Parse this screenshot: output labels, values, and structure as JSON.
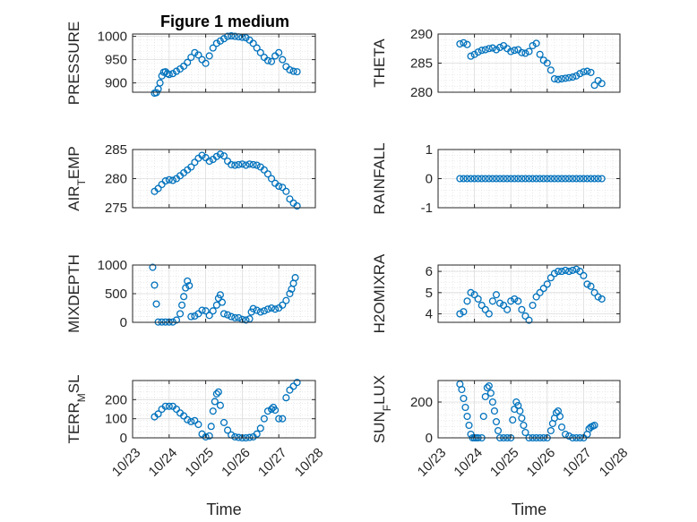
{
  "chart_data": [
    {
      "type": "scatter",
      "title": "Figure 1 medium",
      "ylabel": "PRESSURE",
      "ylim": [
        880,
        1005
      ],
      "yticks": [
        "900",
        "950",
        "1000"
      ],
      "xlim": [
        "10/23",
        "10/28"
      ],
      "grid": true,
      "marker_color": "#0072BD",
      "series": [
        {
          "x": [
            23.6,
            23.65,
            23.7,
            23.75,
            23.8,
            23.85,
            23.9,
            23.95,
            24.0,
            24.1,
            24.2,
            24.3,
            24.4,
            24.5,
            24.6,
            24.7,
            24.8,
            24.9,
            25.0,
            25.1,
            25.2,
            25.3,
            25.4,
            25.5,
            25.6,
            25.7,
            25.8,
            25.9,
            26.0,
            26.1,
            26.2,
            26.3,
            26.4,
            26.5,
            26.6,
            26.7,
            26.8,
            26.9,
            27.0,
            27.1,
            27.2,
            27.3,
            27.4,
            27.5
          ],
          "y": [
            878,
            879,
            887,
            900,
            915,
            923,
            924,
            920,
            918,
            920,
            925,
            930,
            936,
            944,
            955,
            965,
            960,
            950,
            942,
            958,
            975,
            985,
            990,
            995,
            1000,
            1001,
            1000,
            999,
            998,
            997,
            992,
            985,
            975,
            965,
            955,
            948,
            946,
            958,
            965,
            950,
            935,
            928,
            925,
            924
          ]
        }
      ]
    },
    {
      "type": "scatter",
      "ylabel": "THETA",
      "ylim": [
        280,
        290
      ],
      "yticks": [
        "280",
        "285",
        "290"
      ],
      "xlim": [
        "10/23",
        "10/28"
      ],
      "grid": true,
      "marker_color": "#0072BD",
      "series": [
        {
          "x": [
            23.6,
            23.7,
            23.8,
            23.9,
            24.0,
            24.1,
            24.2,
            24.3,
            24.4,
            24.5,
            24.6,
            24.7,
            24.8,
            24.9,
            25.0,
            25.1,
            25.2,
            25.3,
            25.4,
            25.5,
            25.6,
            25.7,
            25.8,
            25.9,
            26.0,
            26.1,
            26.2,
            26.3,
            26.4,
            26.5,
            26.6,
            26.7,
            26.8,
            26.9,
            27.0,
            27.1,
            27.2,
            27.3,
            27.4,
            27.5
          ],
          "y": [
            288.3,
            288.5,
            288.2,
            286.2,
            286.5,
            286.9,
            287.2,
            287.3,
            287.5,
            287.6,
            287.3,
            287.7,
            288.0,
            287.5,
            287.0,
            287.2,
            287.3,
            286.8,
            286.7,
            287.0,
            288.0,
            288.4,
            286.5,
            285.5,
            285.0,
            283.8,
            282.3,
            282.2,
            282.3,
            282.4,
            282.5,
            282.6,
            282.8,
            283.2,
            283.5,
            283.6,
            283.4,
            281.2,
            282.0,
            281.5
          ]
        }
      ]
    },
    {
      "type": "scatter",
      "ylabel_main": "AIR",
      "ylabel_sub": "T",
      "ylabel_rest": "EMP",
      "ylim": [
        275,
        285
      ],
      "yticks": [
        "275",
        "280",
        "285"
      ],
      "xlim": [
        "10/23",
        "10/28"
      ],
      "grid": true,
      "marker_color": "#0072BD",
      "series": [
        {
          "x": [
            23.6,
            23.7,
            23.8,
            23.9,
            24.0,
            24.1,
            24.2,
            24.3,
            24.4,
            24.5,
            24.6,
            24.7,
            24.8,
            24.9,
            25.0,
            25.1,
            25.2,
            25.3,
            25.4,
            25.5,
            25.6,
            25.7,
            25.8,
            25.9,
            26.0,
            26.1,
            26.2,
            26.3,
            26.4,
            26.5,
            26.6,
            26.7,
            26.8,
            26.9,
            27.0,
            27.1,
            27.2,
            27.3,
            27.4,
            27.5
          ],
          "y": [
            277.8,
            278.3,
            279.0,
            279.6,
            279.8,
            279.7,
            280.0,
            280.5,
            281.0,
            281.5,
            282.0,
            282.8,
            283.5,
            284.0,
            283.6,
            283.0,
            283.3,
            283.8,
            284.2,
            283.9,
            283.0,
            282.4,
            282.3,
            282.4,
            282.5,
            282.3,
            282.5,
            282.4,
            282.3,
            282.0,
            281.5,
            280.8,
            280.0,
            279.2,
            278.7,
            278.5,
            277.8,
            276.5,
            275.8,
            275.3
          ]
        }
      ]
    },
    {
      "type": "scatter",
      "ylabel": "RAINFALL",
      "ylim": [
        -1,
        1
      ],
      "yticks": [
        "-1",
        "0",
        "1"
      ],
      "xlim": [
        "10/23",
        "10/28"
      ],
      "grid": true,
      "marker_color": "#0072BD",
      "series": [
        {
          "x": [
            23.6,
            23.7,
            23.8,
            23.9,
            24.0,
            24.1,
            24.2,
            24.3,
            24.4,
            24.5,
            24.6,
            24.7,
            24.8,
            24.9,
            25.0,
            25.1,
            25.2,
            25.3,
            25.4,
            25.5,
            25.6,
            25.7,
            25.8,
            25.9,
            26.0,
            26.1,
            26.2,
            26.3,
            26.4,
            26.5,
            26.6,
            26.7,
            26.8,
            26.9,
            27.0,
            27.1,
            27.2,
            27.3,
            27.4,
            27.5
          ],
          "y": [
            0,
            0,
            0,
            0,
            0,
            0,
            0,
            0,
            0,
            0,
            0,
            0,
            0,
            0,
            0,
            0,
            0,
            0,
            0,
            0,
            0,
            0,
            0,
            0,
            0,
            0,
            0,
            0,
            0,
            0,
            0,
            0,
            0,
            0,
            0,
            0,
            0,
            0,
            0,
            0
          ]
        }
      ]
    },
    {
      "type": "scatter",
      "ylabel": "MIXDEPTH",
      "ylim": [
        0,
        1000
      ],
      "yticks": [
        "0",
        "500",
        "1000"
      ],
      "xlim": [
        "10/23",
        "10/28"
      ],
      "grid": true,
      "marker_color": "#0072BD",
      "series": [
        {
          "x": [
            23.55,
            23.6,
            23.65,
            23.7,
            23.8,
            23.9,
            24.0,
            24.1,
            24.2,
            24.3,
            24.35,
            24.4,
            24.45,
            24.5,
            24.55,
            24.6,
            24.7,
            24.8,
            24.9,
            25.0,
            25.1,
            25.2,
            25.3,
            25.35,
            25.4,
            25.45,
            25.5,
            25.6,
            25.7,
            25.8,
            25.9,
            26.0,
            26.1,
            26.2,
            26.25,
            26.3,
            26.4,
            26.5,
            26.6,
            26.7,
            26.8,
            26.9,
            27.0,
            27.1,
            27.2,
            27.3,
            27.35,
            27.4,
            27.45
          ],
          "y": [
            960,
            650,
            320,
            5,
            5,
            5,
            5,
            5,
            40,
            150,
            300,
            450,
            600,
            720,
            640,
            100,
            110,
            150,
            210,
            200,
            120,
            200,
            300,
            420,
            480,
            350,
            150,
            130,
            100,
            80,
            80,
            50,
            40,
            60,
            180,
            240,
            210,
            180,
            200,
            230,
            250,
            230,
            250,
            300,
            380,
            500,
            580,
            680,
            780
          ]
        }
      ]
    },
    {
      "type": "scatter",
      "ylabel": "H2OMIXRA",
      "ylim": [
        3.6,
        6.3
      ],
      "yticks": [
        "4",
        "5",
        "6"
      ],
      "xlim": [
        "10/23",
        "10/28"
      ],
      "grid": true,
      "marker_color": "#0072BD",
      "series": [
        {
          "x": [
            23.6,
            23.7,
            23.8,
            23.9,
            24.0,
            24.1,
            24.2,
            24.3,
            24.4,
            24.5,
            24.6,
            24.7,
            24.8,
            24.9,
            25.0,
            25.1,
            25.2,
            25.3,
            25.4,
            25.5,
            25.6,
            25.7,
            25.8,
            25.9,
            26.0,
            26.1,
            26.2,
            26.3,
            26.4,
            26.5,
            26.6,
            26.7,
            26.8,
            26.9,
            27.0,
            27.1,
            27.2,
            27.3,
            27.4,
            27.5
          ],
          "y": [
            4.0,
            4.1,
            4.6,
            5.0,
            4.9,
            4.7,
            4.4,
            4.2,
            4.0,
            4.6,
            4.9,
            4.5,
            4.4,
            4.2,
            4.6,
            4.7,
            4.6,
            4.2,
            3.9,
            3.7,
            4.4,
            4.8,
            5.0,
            5.2,
            5.4,
            5.7,
            5.9,
            6.0,
            6.0,
            6.05,
            6.0,
            6.05,
            6.1,
            6.0,
            5.8,
            5.4,
            5.3,
            5.0,
            4.8,
            4.7
          ]
        }
      ]
    },
    {
      "type": "scatter",
      "ylabel_main": "TERR",
      "ylabel_sub": "M",
      "ylabel_rest": "SL",
      "ylim": [
        0,
        300
      ],
      "yticks": [
        "0",
        "100",
        "200"
      ],
      "xlim": [
        "10/23",
        "10/28"
      ],
      "xticks": [
        "10/23",
        "10/24",
        "10/25",
        "10/26",
        "10/27",
        "10/28"
      ],
      "xlabel": "Time",
      "grid": true,
      "marker_color": "#0072BD",
      "series": [
        {
          "x": [
            23.6,
            23.7,
            23.8,
            23.9,
            24.0,
            24.1,
            24.2,
            24.3,
            24.4,
            24.5,
            24.6,
            24.7,
            24.8,
            24.9,
            25.0,
            25.1,
            25.15,
            25.2,
            25.25,
            25.3,
            25.35,
            25.4,
            25.5,
            25.6,
            25.7,
            25.8,
            25.9,
            26.0,
            26.1,
            26.2,
            26.3,
            26.4,
            26.5,
            26.6,
            26.7,
            26.8,
            26.85,
            26.9,
            27.0,
            27.1,
            27.2,
            27.3,
            27.4,
            27.5
          ],
          "y": [
            110,
            125,
            150,
            165,
            165,
            165,
            150,
            130,
            115,
            95,
            85,
            90,
            70,
            20,
            5,
            10,
            60,
            140,
            190,
            230,
            240,
            170,
            80,
            40,
            15,
            5,
            2,
            0,
            0,
            2,
            5,
            20,
            50,
            100,
            140,
            150,
            160,
            145,
            100,
            100,
            210,
            250,
            270,
            290
          ]
        }
      ]
    },
    {
      "type": "scatter",
      "ylabel_main": "SUN",
      "ylabel_sub": "F",
      "ylabel_rest": "LUX",
      "ylim": [
        0,
        320
      ],
      "yticks": [
        "0",
        "200"
      ],
      "xlim": [
        "10/23",
        "10/28"
      ],
      "xticks": [
        "10/23",
        "10/24",
        "10/25",
        "10/26",
        "10/27",
        "10/28"
      ],
      "xlabel": "Time",
      "grid": true,
      "marker_color": "#0072BD",
      "series": [
        {
          "x": [
            23.6,
            23.65,
            23.7,
            23.75,
            23.8,
            23.85,
            23.9,
            23.95,
            24.0,
            24.05,
            24.1,
            24.2,
            24.25,
            24.3,
            24.35,
            24.4,
            24.45,
            24.5,
            24.55,
            24.6,
            24.65,
            24.7,
            24.8,
            24.9,
            25.0,
            25.05,
            25.1,
            25.15,
            25.2,
            25.25,
            25.3,
            25.35,
            25.4,
            25.5,
            25.6,
            25.7,
            25.8,
            25.9,
            26.0,
            26.1,
            26.15,
            26.2,
            26.25,
            26.3,
            26.35,
            26.4,
            26.5,
            26.6,
            26.7,
            26.8,
            26.9,
            27.0,
            27.1,
            27.15,
            27.2,
            27.25,
            27.3
          ],
          "y": [
            300,
            270,
            220,
            170,
            120,
            70,
            20,
            0,
            0,
            0,
            0,
            0,
            120,
            230,
            280,
            290,
            250,
            200,
            150,
            90,
            40,
            0,
            0,
            0,
            0,
            100,
            160,
            200,
            180,
            150,
            110,
            70,
            30,
            0,
            0,
            0,
            0,
            0,
            0,
            40,
            80,
            110,
            140,
            150,
            120,
            60,
            20,
            10,
            0,
            0,
            0,
            0,
            20,
            50,
            60,
            65,
            70
          ]
        }
      ]
    }
  ]
}
